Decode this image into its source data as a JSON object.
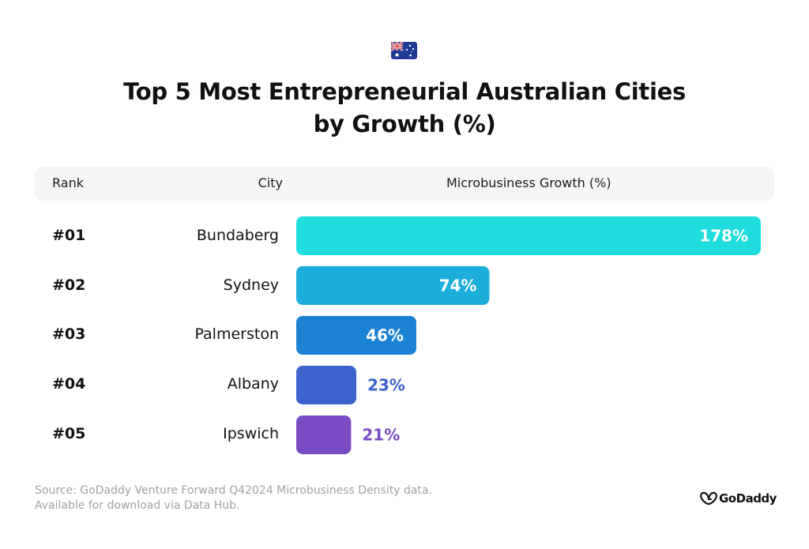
{
  "title_line1": "Top 5 Most Entrepreneurial Australian Cities",
  "title_line2": "by Growth (%)",
  "headers": {
    "rank": "Rank",
    "city": "City",
    "growth": "Microbusiness Growth (%)"
  },
  "source_line1": "Source: GoDaddy Venture Forward Q42024 Microbusiness Density data.",
  "source_line2": "Available for download via Data Hub.",
  "brand": "GoDaddy",
  "flag_icon": "australian-flag-icon",
  "chart_data": {
    "type": "bar",
    "orientation": "horizontal",
    "categories": [
      "Bundaberg",
      "Sydney",
      "Palmerston",
      "Albany",
      "Ipswich"
    ],
    "ranks": [
      "#01",
      "#02",
      "#03",
      "#04",
      "#05"
    ],
    "values": [
      178,
      74,
      46,
      23,
      21
    ],
    "value_labels": [
      "178%",
      "74%",
      "46%",
      "23%",
      "21%"
    ],
    "colors": [
      "#1fdddf",
      "#1dafdc",
      "#1b82d4",
      "#3d63cc",
      "#7a4cc4"
    ],
    "xlabel": "Microbusiness Growth (%)",
    "grid": false,
    "legend": "none"
  }
}
